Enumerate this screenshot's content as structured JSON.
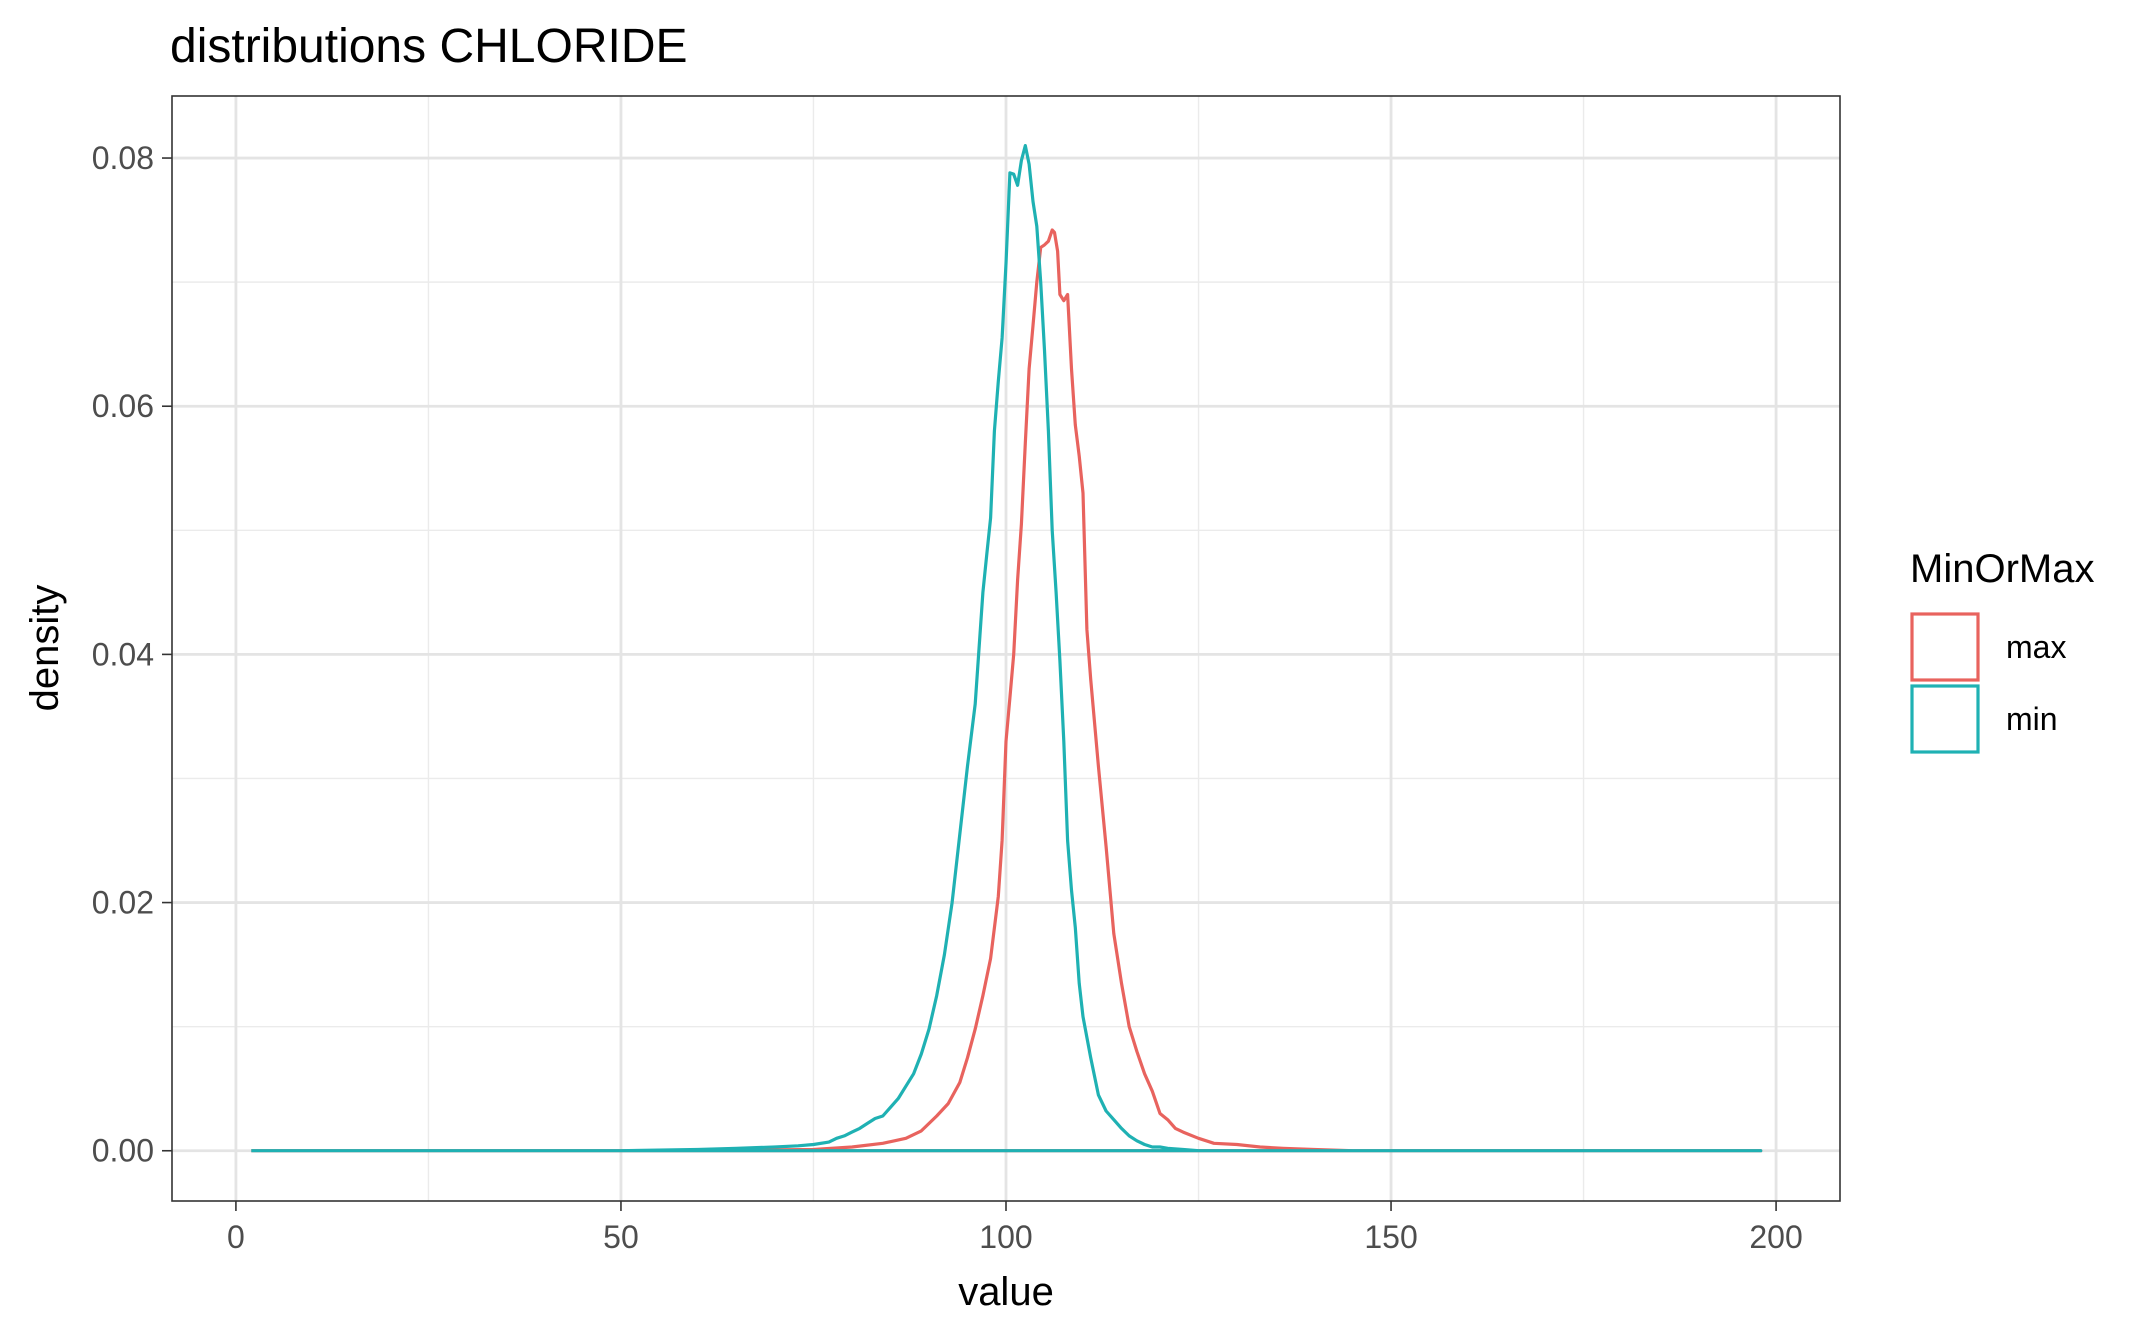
{
  "chart_data": {
    "type": "line",
    "title": "distributions CHLORIDE",
    "xlabel": "value",
    "ylabel": "density",
    "xlim": [
      -8.3,
      208.3
    ],
    "ylim": [
      -0.00405,
      0.085
    ],
    "x_ticks": [
      0,
      50,
      100,
      150,
      200
    ],
    "x_tick_labels": [
      "0",
      "50",
      "100",
      "150",
      "200"
    ],
    "x_minor_ticks": [
      25,
      75,
      125,
      175
    ],
    "y_ticks": [
      0,
      0.02,
      0.04,
      0.06,
      0.08
    ],
    "y_tick_labels": [
      "0.00",
      "0.02",
      "0.04",
      "0.06",
      "0.08"
    ],
    "y_minor_ticks": [
      0.01,
      0.03,
      0.05,
      0.07
    ],
    "grid": true,
    "theme": "bw",
    "legend": {
      "title": "MinOrMax",
      "position": "right",
      "entries": [
        "max",
        "min"
      ]
    },
    "series": [
      {
        "name": "max",
        "color": "#E8635E",
        "x": [
          2,
          60,
          75,
          80,
          84,
          87,
          89,
          91,
          92.5,
          94,
          95,
          96,
          97,
          98,
          99,
          99.5,
          100,
          100.5,
          101,
          101.5,
          102,
          102.5,
          103,
          103.5,
          104,
          104.5,
          105,
          105.5,
          106,
          106.3,
          106.7,
          107,
          107.5,
          108,
          108.5,
          109,
          109.5,
          110,
          110.5,
          111,
          112,
          113,
          114,
          115,
          116,
          117,
          118,
          119,
          120,
          121,
          122,
          123,
          125,
          127,
          130,
          133,
          136,
          140,
          145,
          198
        ],
        "y": [
          0,
          0,
          0.0001,
          0.0003,
          0.0006,
          0.001,
          0.0016,
          0.0028,
          0.0038,
          0.0055,
          0.0075,
          0.0098,
          0.0125,
          0.0155,
          0.0205,
          0.025,
          0.033,
          0.0365,
          0.04,
          0.046,
          0.0505,
          0.057,
          0.063,
          0.0665,
          0.07,
          0.0728,
          0.073,
          0.0733,
          0.0742,
          0.074,
          0.0725,
          0.069,
          0.0685,
          0.069,
          0.063,
          0.0585,
          0.056,
          0.053,
          0.042,
          0.038,
          0.031,
          0.0245,
          0.0175,
          0.0135,
          0.01,
          0.008,
          0.0062,
          0.0048,
          0.003,
          0.0025,
          0.0018,
          0.0015,
          0.001,
          0.0006,
          0.0005,
          0.0003,
          0.0002,
          0.0001,
          0,
          0
        ]
      },
      {
        "name": "min",
        "color": "#1FB1B3",
        "x": [
          2,
          50,
          60,
          65,
          70,
          73,
          75,
          77,
          78,
          79,
          80,
          81,
          82,
          83,
          84,
          85,
          86,
          87,
          88,
          89,
          90,
          91,
          92,
          93,
          94,
          95,
          96,
          97,
          97.5,
          98,
          98.5,
          99,
          99.5,
          100,
          100.5,
          101,
          101.5,
          102,
          102.5,
          103,
          103.5,
          104,
          104.5,
          105,
          105.5,
          106,
          106.5,
          107,
          107.5,
          108,
          108.5,
          109,
          109.5,
          110,
          111,
          112,
          113,
          114,
          115,
          116,
          117,
          118,
          119,
          120,
          121,
          123,
          125,
          130,
          135,
          198
        ],
        "y": [
          0,
          0,
          0.0001,
          0.0002,
          0.0003,
          0.0004,
          0.0005,
          0.0007,
          0.001,
          0.0012,
          0.0015,
          0.0018,
          0.0022,
          0.0026,
          0.0028,
          0.0035,
          0.0042,
          0.0052,
          0.0062,
          0.0078,
          0.0098,
          0.0125,
          0.0158,
          0.02,
          0.0255,
          0.031,
          0.036,
          0.045,
          0.048,
          0.051,
          0.058,
          0.062,
          0.0655,
          0.0715,
          0.0788,
          0.0787,
          0.0778,
          0.0798,
          0.081,
          0.0795,
          0.0765,
          0.0745,
          0.07,
          0.0645,
          0.058,
          0.05,
          0.045,
          0.0395,
          0.033,
          0.025,
          0.021,
          0.018,
          0.0135,
          0.0108,
          0.0075,
          0.0045,
          0.0032,
          0.0025,
          0.0018,
          0.0012,
          0.0008,
          0.0005,
          0.0003,
          0.0003,
          0.0002,
          0.0001,
          0,
          0,
          0,
          0
        ]
      }
    ]
  }
}
